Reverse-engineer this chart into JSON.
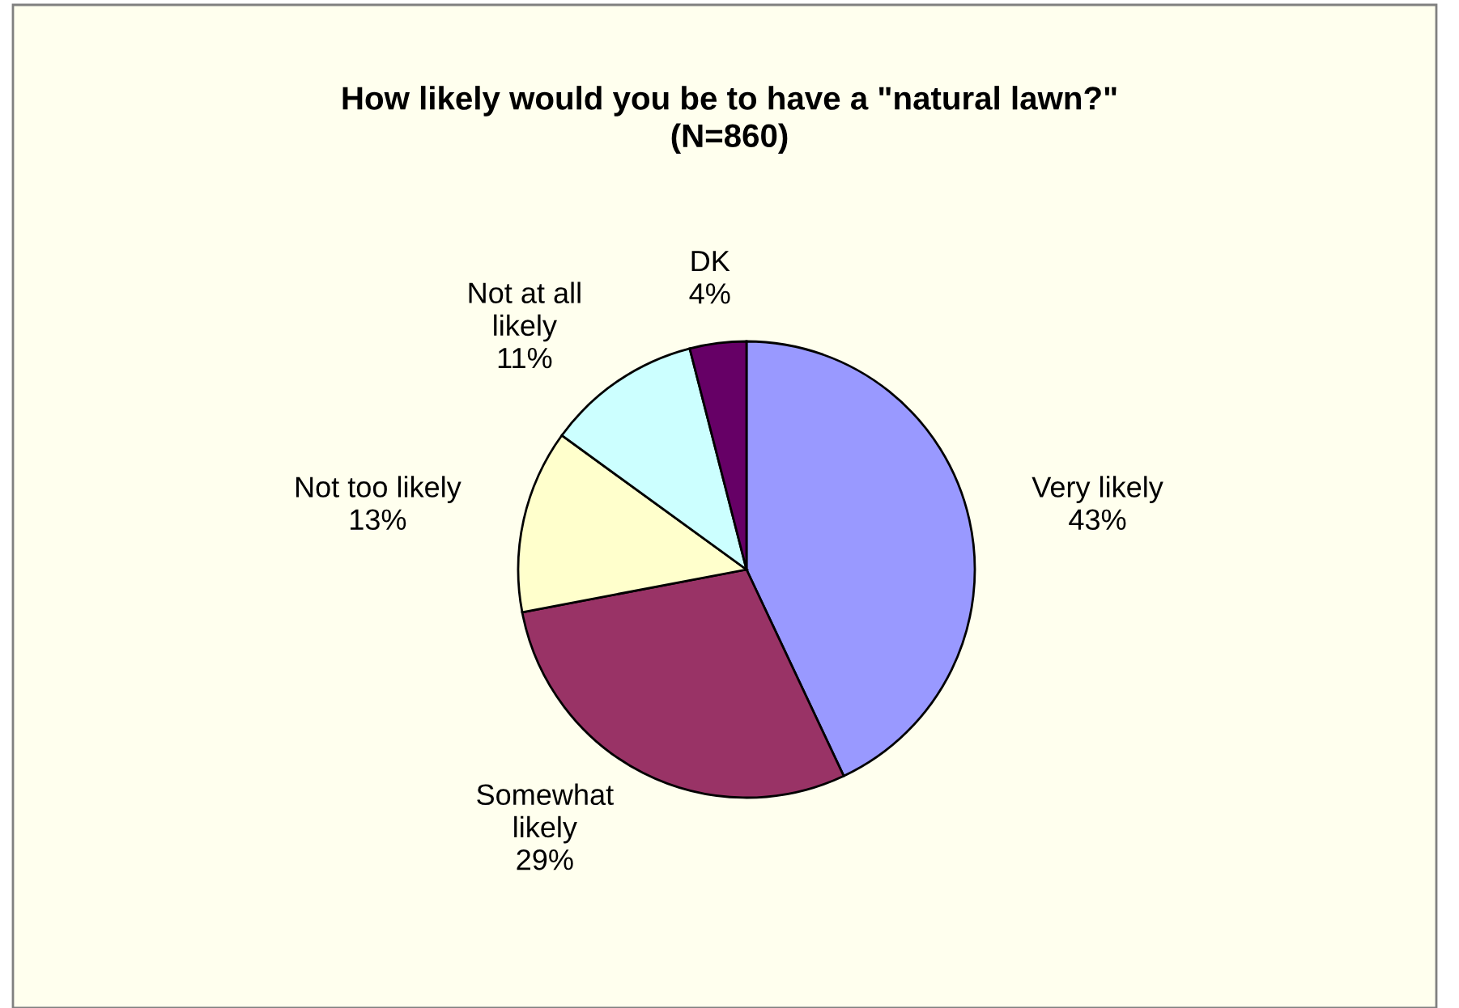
{
  "chart_data": {
    "type": "pie",
    "title": "How likely would you be to have a \"natural lawn?\"\n(N=860)",
    "categories": [
      "Very likely",
      "Somewhat\nlikely",
      "Not too likely",
      "Not at all\nlikely",
      "DK"
    ],
    "values": [
      43,
      29,
      13,
      11,
      4
    ],
    "colors": [
      "#9999ff",
      "#993366",
      "#ffffcc",
      "#ccffff",
      "#660066"
    ],
    "value_labels": [
      "43%",
      "29%",
      "13%",
      "11%",
      "4%"
    ]
  }
}
